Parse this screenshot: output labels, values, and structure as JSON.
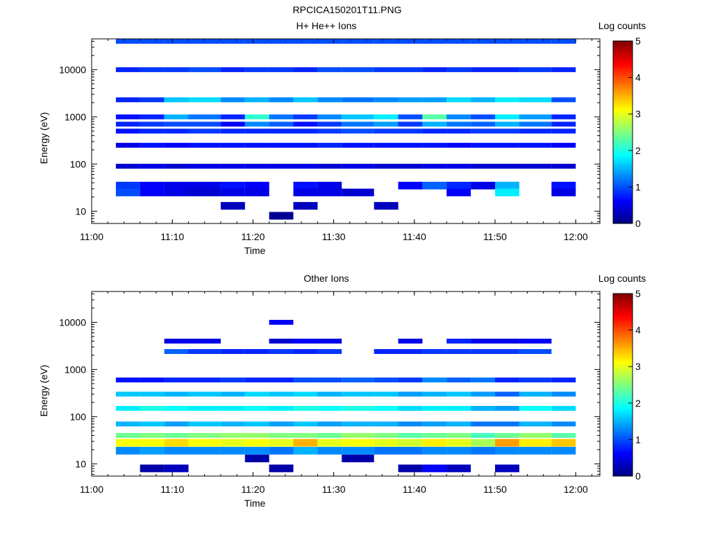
{
  "figure_title": "RPCICA150201T11.PNG",
  "colors": {
    "background": "#ffffff",
    "axis": "#000000"
  },
  "colormap": "jet",
  "chart_data": [
    {
      "type": "heatmap",
      "title": "H+ He++ Ions",
      "xlabel": "Time",
      "ylabel": "Energy (eV)",
      "xlim": [
        "11:00",
        "12:03"
      ],
      "x_ticks": [
        "11:00",
        "11:10",
        "11:20",
        "11:30",
        "11:40",
        "11:50",
        "12:00"
      ],
      "ylim": [
        5.5,
        45000
      ],
      "y_scale": "log",
      "y_ticks": [
        10,
        100,
        1000,
        10000
      ],
      "colorbar": {
        "label": "Log counts",
        "range": [
          0,
          5
        ],
        "ticks": [
          0,
          1,
          2,
          3,
          4,
          5
        ]
      },
      "time_bins": [
        "11:03",
        "11:06",
        "11:09",
        "11:12",
        "11:16",
        "11:19",
        "11:22",
        "11:25",
        "11:28",
        "11:31",
        "11:35",
        "11:38",
        "11:41",
        "11:44",
        "11:47",
        "11:50",
        "11:53",
        "11:57",
        "12:00"
      ],
      "energy_bins": [
        40000,
        10000,
        2300,
        1000,
        700,
        500,
        250,
        90,
        35,
        25,
        13,
        8
      ],
      "values": [
        [
          1.0,
          1.0,
          1.0,
          1.0,
          1.0,
          1.0,
          1.0,
          1.0,
          1.0,
          1.0,
          1.0,
          1.0,
          1.0,
          1.0,
          1.0,
          1.0,
          1.0,
          1.0
        ],
        [
          0.8,
          0.9,
          0.9,
          1.0,
          0.8,
          0.9,
          0.9,
          0.8,
          1.0,
          1.0,
          0.9,
          0.9,
          0.8,
          0.9,
          0.8,
          0.8,
          0.9,
          0.8
        ],
        [
          0.8,
          0.9,
          1.6,
          1.7,
          1.3,
          1.5,
          1.3,
          1.6,
          1.3,
          1.2,
          1.3,
          1.4,
          1.4,
          1.7,
          1.5,
          1.8,
          1.7,
          1.0
        ],
        [
          0.7,
          0.8,
          1.5,
          1.2,
          0.8,
          2.1,
          1.2,
          0.9,
          1.3,
          1.6,
          1.8,
          1.0,
          2.3,
          1.3,
          1.0,
          1.8,
          1.4,
          0.8
        ],
        [
          0.8,
          0.9,
          1.0,
          1.0,
          0.6,
          1.3,
          1.1,
          0.7,
          0.9,
          1.2,
          1.4,
          0.9,
          1.5,
          1.2,
          1.1,
          1.5,
          1.2,
          0.8
        ],
        [
          0.7,
          0.8,
          0.8,
          0.9,
          0.8,
          0.8,
          0.8,
          0.8,
          0.9,
          1.0,
          0.9,
          0.9,
          0.8,
          0.8,
          0.9,
          0.9,
          0.8,
          0.8
        ],
        [
          0.5,
          0.7,
          0.6,
          0.7,
          0.7,
          0.7,
          0.7,
          0.7,
          0.8,
          0.7,
          0.7,
          0.7,
          0.7,
          0.6,
          0.7,
          0.7,
          0.7,
          0.6
        ],
        [
          0.4,
          0.5,
          0.4,
          0.5,
          0.5,
          0.5,
          0.5,
          0.5,
          0.4,
          0.5,
          0.4,
          0.4,
          0.5,
          0.5,
          0.4,
          0.4,
          0.4,
          0.4
        ],
        [
          0.9,
          0.6,
          0.5,
          0.5,
          0.7,
          0.6,
          null,
          0.7,
          0.5,
          null,
          null,
          0.6,
          1.1,
          0.8,
          0.5,
          1.5,
          null,
          0.7
        ],
        [
          1.0,
          0.6,
          0.5,
          0.4,
          0.5,
          0.5,
          null,
          0.5,
          0.5,
          0.4,
          null,
          null,
          null,
          0.6,
          null,
          1.8,
          null,
          0.5
        ],
        [
          null,
          null,
          null,
          null,
          0.3,
          null,
          null,
          0.3,
          null,
          null,
          0.3,
          null,
          null,
          null,
          null,
          null,
          null,
          null
        ],
        [
          null,
          null,
          null,
          null,
          null,
          null,
          0.1,
          null,
          null,
          null,
          null,
          null,
          null,
          null,
          null,
          null,
          null,
          null
        ]
      ]
    },
    {
      "type": "heatmap",
      "title": "Other Ions",
      "xlabel": "Time",
      "ylabel": "Energy (eV)",
      "xlim": [
        "11:00",
        "12:03"
      ],
      "x_ticks": [
        "11:00",
        "11:10",
        "11:20",
        "11:30",
        "11:40",
        "11:50",
        "12:00"
      ],
      "ylim": [
        5.5,
        45000
      ],
      "y_scale": "log",
      "y_ticks": [
        10,
        100,
        1000,
        10000
      ],
      "colorbar": {
        "label": "Log counts",
        "range": [
          0,
          5
        ],
        "ticks": [
          0,
          1,
          2,
          3,
          4,
          5
        ]
      },
      "time_bins": [
        "11:03",
        "11:06",
        "11:09",
        "11:12",
        "11:16",
        "11:19",
        "11:22",
        "11:25",
        "11:28",
        "11:31",
        "11:35",
        "11:38",
        "11:41",
        "11:44",
        "11:47",
        "11:50",
        "11:53",
        "11:57",
        "12:00"
      ],
      "energy_bins": [
        10000,
        4000,
        2400,
        600,
        300,
        150,
        70,
        40,
        28,
        19,
        13,
        8
      ],
      "values": [
        [
          null,
          null,
          null,
          null,
          null,
          null,
          0.6,
          null,
          null,
          null,
          null,
          null,
          null,
          null,
          null,
          null,
          null,
          null
        ],
        [
          null,
          null,
          0.5,
          0.5,
          null,
          null,
          0.4,
          0.6,
          0.5,
          null,
          null,
          0.5,
          null,
          0.8,
          0.5,
          0.5,
          0.6,
          null
        ],
        [
          null,
          null,
          1.1,
          0.9,
          0.8,
          0.8,
          0.9,
          0.8,
          0.9,
          null,
          0.8,
          0.8,
          0.9,
          0.9,
          0.9,
          0.9,
          1.0,
          null
        ],
        [
          0.7,
          0.7,
          0.8,
          0.8,
          0.9,
          0.8,
          0.8,
          1.0,
          1.0,
          1.1,
          1.0,
          0.9,
          1.3,
          1.1,
          1.2,
          0.8,
          0.9,
          0.8
        ],
        [
          1.6,
          1.6,
          1.5,
          1.6,
          1.5,
          1.7,
          1.6,
          1.7,
          1.5,
          1.6,
          1.6,
          1.4,
          1.5,
          1.6,
          1.4,
          1.1,
          1.5,
          1.3
        ],
        [
          1.8,
          2.0,
          1.9,
          1.8,
          1.8,
          1.9,
          1.8,
          2.0,
          1.9,
          2.0,
          1.9,
          1.7,
          1.8,
          1.8,
          1.5,
          1.4,
          1.9,
          1.7
        ],
        [
          1.5,
          1.6,
          1.4,
          1.6,
          1.5,
          1.6,
          1.4,
          1.6,
          1.4,
          1.5,
          1.5,
          1.3,
          1.4,
          1.5,
          1.2,
          1.2,
          1.5,
          1.3
        ],
        [
          2.4,
          2.5,
          2.4,
          2.5,
          2.6,
          2.6,
          2.5,
          2.5,
          2.4,
          2.6,
          2.5,
          2.3,
          2.4,
          2.5,
          2.2,
          2.4,
          2.6,
          2.3
        ],
        [
          3.1,
          3.1,
          3.3,
          3.1,
          3.0,
          3.1,
          3.0,
          3.5,
          3.0,
          3.1,
          3.0,
          2.9,
          3.2,
          3.0,
          2.7,
          3.6,
          3.2,
          3.4
        ],
        [
          1.3,
          1.4,
          1.3,
          1.3,
          1.3,
          1.3,
          1.2,
          1.5,
          1.3,
          1.3,
          1.2,
          1.2,
          1.3,
          1.3,
          1.2,
          1.3,
          1.3,
          1.3
        ],
        [
          null,
          null,
          null,
          null,
          null,
          0.2,
          null,
          null,
          null,
          0.2,
          null,
          null,
          null,
          null,
          null,
          null,
          null,
          null
        ],
        [
          null,
          0.2,
          0.3,
          null,
          null,
          null,
          0.2,
          null,
          null,
          null,
          null,
          0.2,
          0.6,
          0.3,
          null,
          0.3,
          null,
          null
        ]
      ]
    }
  ]
}
